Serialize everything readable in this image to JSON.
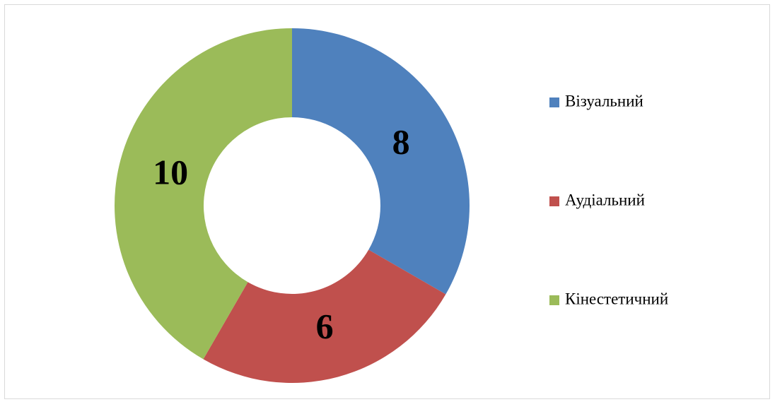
{
  "chart_data": {
    "type": "donut",
    "categories": [
      "Візуальний",
      "Аудіальний",
      "Кінестетичний"
    ],
    "values": [
      8,
      6,
      10
    ],
    "colors": [
      "#4f81bd",
      "#c0504d",
      "#9bbb59"
    ],
    "legend": "right"
  }
}
